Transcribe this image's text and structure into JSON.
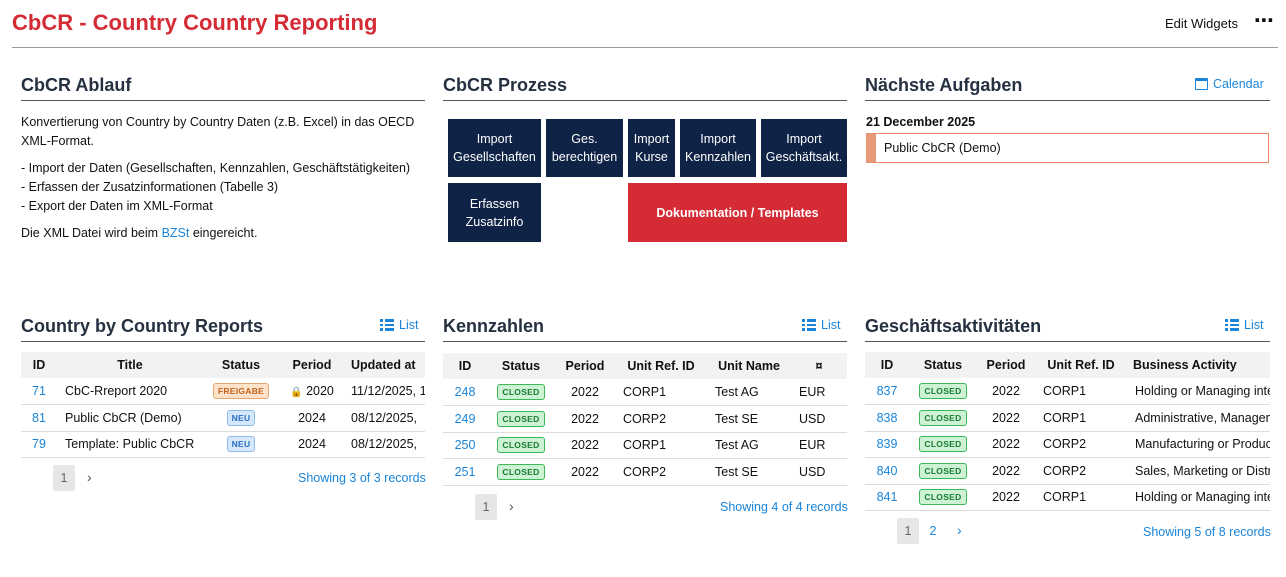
{
  "header": {
    "title": "CbCR - Country Country Reporting",
    "edit_widgets": "Edit Widgets",
    "more_icon": "⋯"
  },
  "ablauf": {
    "title": "CbCR Ablauf",
    "intro": "Konvertierung von Country by Country Daten (z.B. Excel) in das OECD XML-Format.",
    "bullets": [
      "- Import der Daten (Gesellschaften, Kennzahlen, Geschäftstätigkeiten)",
      "- Erfassen der Zusatzinformationen (Tabelle 3)",
      "- Export der Daten im XML-Format"
    ],
    "submit_prefix": "Die XML Datei wird beim ",
    "submit_link": "BZSt",
    "submit_suffix": " eingereicht."
  },
  "prozess": {
    "title": "CbCR Prozess",
    "buttons": [
      {
        "line1": "Import",
        "line2": "Gesellschaften"
      },
      {
        "line1": "Ges.",
        "line2": "berechtigen"
      },
      {
        "line1": "Import",
        "line2": "Kurse"
      },
      {
        "line1": "Import",
        "line2": "Kennzahlen"
      },
      {
        "line1": "Import",
        "line2": "Geschäftsakt."
      },
      {
        "line1": "Erfassen",
        "line2": "Zusatzinfo"
      }
    ],
    "doc_button": "Dokumentation / Templates"
  },
  "aufgaben": {
    "title": "Nächste Aufgaben",
    "calendar_label": "Calendar",
    "date": "21 December 2025",
    "task": "Public CbCR (Demo)"
  },
  "reports": {
    "title": "Country by Country Reports",
    "list_label": "List",
    "columns": [
      "ID",
      "Title",
      "Status",
      "Period",
      "Updated at"
    ],
    "rows": [
      {
        "id": "71",
        "title": "CbC-Rreport 2020",
        "status": "FREIGABE",
        "locked": true,
        "period": "2020",
        "updated": "11/12/2025, 1"
      },
      {
        "id": "81",
        "title": "Public CbCR (Demo)",
        "status": "NEU",
        "locked": false,
        "period": "2024",
        "updated": "08/12/2025,"
      },
      {
        "id": "79",
        "title": "Template: Public CbCR",
        "status": "NEU",
        "locked": false,
        "period": "2024",
        "updated": "08/12/2025,"
      }
    ],
    "pages": [
      "1"
    ],
    "showing": "Showing 3 of 3 records"
  },
  "kennzahlen": {
    "title": "Kennzahlen",
    "list_label": "List",
    "columns": [
      "ID",
      "Status",
      "Period",
      "Unit Ref. ID",
      "Unit Name",
      "¤"
    ],
    "rows": [
      {
        "id": "248",
        "status": "CLOSED",
        "period": "2022",
        "unit_ref": "CORP1",
        "unit_name": "Test AG",
        "currency": "EUR"
      },
      {
        "id": "249",
        "status": "CLOSED",
        "period": "2022",
        "unit_ref": "CORP2",
        "unit_name": "Test SE",
        "currency": "USD"
      },
      {
        "id": "250",
        "status": "CLOSED",
        "period": "2022",
        "unit_ref": "CORP1",
        "unit_name": "Test AG",
        "currency": "EUR"
      },
      {
        "id": "251",
        "status": "CLOSED",
        "period": "2022",
        "unit_ref": "CORP2",
        "unit_name": "Test SE",
        "currency": "USD"
      }
    ],
    "pages": [
      "1"
    ],
    "showing": "Showing 4 of 4 records"
  },
  "aktivitaeten": {
    "title": "Geschäftsaktivitäten",
    "list_label": "List",
    "columns": [
      "ID",
      "Status",
      "Period",
      "Unit Ref. ID",
      "Business Activity"
    ],
    "rows": [
      {
        "id": "837",
        "status": "CLOSED",
        "period": "2022",
        "unit_ref": "CORP1",
        "activity": "Holding or Managing intell"
      },
      {
        "id": "838",
        "status": "CLOSED",
        "period": "2022",
        "unit_ref": "CORP1",
        "activity": "Administrative, Manageme"
      },
      {
        "id": "839",
        "status": "CLOSED",
        "period": "2022",
        "unit_ref": "CORP2",
        "activity": "Manufacturing or Producti"
      },
      {
        "id": "840",
        "status": "CLOSED",
        "period": "2022",
        "unit_ref": "CORP2",
        "activity": "Sales, Marketing or Distrib"
      },
      {
        "id": "841",
        "status": "CLOSED",
        "period": "2022",
        "unit_ref": "CORP1",
        "activity": "Holding or Managing intell"
      }
    ],
    "pages": [
      "1",
      "2"
    ],
    "showing": "Showing 5 of 8 records"
  },
  "colors": {
    "brand_red": "#d42b34",
    "navy": "#0f2347",
    "link_blue": "#1a84d8"
  }
}
